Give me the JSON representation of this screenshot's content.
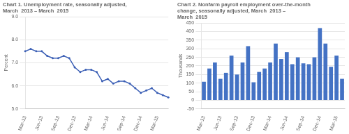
{
  "chart_data": [
    {
      "type": "line",
      "title": [
        "Chart 1. Unemployment rate, seasonally adjusted,",
        "March  2013 – March  2015"
      ],
      "y_label": "Percent",
      "categories": [
        "Mar-13",
        null,
        null,
        "Jun-13",
        null,
        null,
        "Sep-13",
        null,
        null,
        "Dec-13",
        null,
        null,
        "Mar-14",
        null,
        null,
        "Jun-14",
        null,
        null,
        "Sep-14",
        null,
        null,
        "Dec-14",
        null,
        null,
        "Mar-15",
        null,
        null
      ],
      "values": [
        7.5,
        7.6,
        7.5,
        7.5,
        7.3,
        7.2,
        7.2,
        7.3,
        7.2,
        6.8,
        6.6,
        6.7,
        6.7,
        6.6,
        6.2,
        6.3,
        6.1,
        6.2,
        6.2,
        6.1,
        5.9,
        5.7,
        5.8,
        5.9,
        5.7,
        5.6,
        5.5
      ],
      "color": "#3B5FB5",
      "marker": "circle",
      "ylim": [
        5.0,
        9.0
      ],
      "yticks": [
        {
          "value": 5.0,
          "label": "5.0"
        },
        {
          "value": 6.0,
          "label": "6.0"
        },
        {
          "value": 7.0,
          "label": "7.0"
        },
        {
          "value": 8.0,
          "label": "8.0"
        },
        {
          "value": 9.0,
          "label": "9.0"
        }
      ],
      "grid": true
    },
    {
      "type": "bar",
      "title": [
        "Chart 2. Nonfarm payroll employment over-the-month",
        "change, seasonally adjusted, March  2013 –",
        "March  2015"
      ],
      "y_label": "Thousands",
      "categories": [
        "Mar-13",
        null,
        null,
        "Jun-13",
        null,
        null,
        "Sep-13",
        null,
        null,
        "Dec-13",
        null,
        null,
        "Mar-14",
        null,
        null,
        "Jun-14",
        null,
        null,
        "Sep-14",
        null,
        null,
        "Dec-14",
        null,
        null,
        "Mar-15",
        null
      ],
      "values": [
        108,
        185,
        220,
        125,
        160,
        260,
        150,
        220,
        315,
        105,
        165,
        185,
        220,
        330,
        240,
        280,
        210,
        250,
        215,
        210,
        250,
        420,
        330,
        195,
        260,
        125
      ],
      "color": "#4472C4",
      "ylim": [
        -50,
        450
      ],
      "yticks": [
        -50,
        0,
        50,
        100,
        150,
        200,
        250,
        300,
        350,
        400,
        450
      ],
      "grid": true
    }
  ]
}
